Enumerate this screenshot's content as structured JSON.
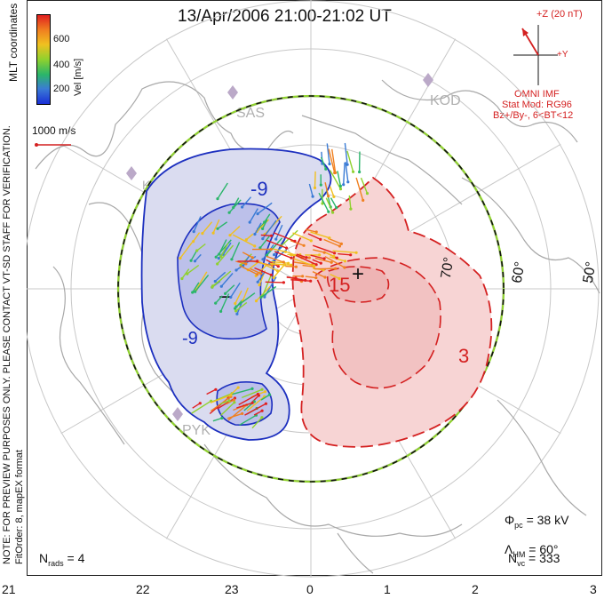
{
  "title": "13/Apr/2006 21:00-21:02 UT",
  "side_notes": {
    "line1": "NOTE: FOR PREVIEW PURPOSES ONLY. PLEASE CONTACT VT-SD STAFF FOR VERIFICATION.",
    "line2": "FitOrder: 8, mapEX format"
  },
  "coord_label": "MLT coordinates",
  "colorbar": {
    "label": "Vel [m/s]",
    "ticks": [
      "600",
      "400",
      "200"
    ],
    "colors": [
      "#1a2fd6",
      "#3a7bd5",
      "#2ab56a",
      "#8fd12e",
      "#f0c020",
      "#f08020",
      "#e02020"
    ]
  },
  "vector_scale": "1000 m/s",
  "imf": {
    "scale": "+Z (20 nT)",
    "y_label": "+Y",
    "source": "OMNI IMF",
    "model": "Stat Mod: RG96",
    "condition": "Bz+/By-, 6<BT<12"
  },
  "stations": [
    "SAS",
    "KOD",
    "KAP",
    "PYK"
  ],
  "contour_labels": {
    "neg": [
      "-9",
      "-9"
    ],
    "pos": [
      "15",
      "3"
    ],
    "min_marker": "−",
    "max_marker": "+"
  },
  "lat_labels": [
    "60°",
    "50°",
    "70°"
  ],
  "stats": {
    "phi_label": "Φ",
    "phi_sub": "pc",
    "phi_value": "= 38 kV",
    "lambda_label": "Λ",
    "lambda_sub": "HM",
    "lambda_value": "= 60°",
    "nvc_label": "N",
    "nvc_sub": "vc",
    "nvc_value": "= 333",
    "nrads_label": "N",
    "nrads_sub": "rads",
    "nrads_value": "= 4"
  },
  "mlt_ticks": [
    "21",
    "22",
    "23",
    "0",
    "1",
    "2",
    "3"
  ]
}
